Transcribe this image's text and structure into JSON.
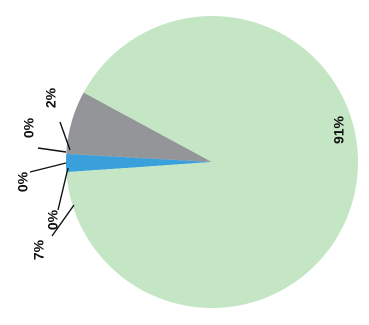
{
  "chart_data": {
    "type": "pie",
    "title": "",
    "slices": [
      {
        "label": "91%",
        "value": 91,
        "color": "#c4e6c5"
      },
      {
        "label": "2%",
        "value": 2,
        "color": "#3aa0dc"
      },
      {
        "label": "0%",
        "value": 0,
        "color": "#2d6fb8"
      },
      {
        "label": "0%",
        "value": 0,
        "color": "#5a8fc8"
      },
      {
        "label": "0%",
        "value": 0,
        "color": "#7a7a7a"
      },
      {
        "label": "7%",
        "value": 7,
        "color": "#939598"
      }
    ]
  }
}
